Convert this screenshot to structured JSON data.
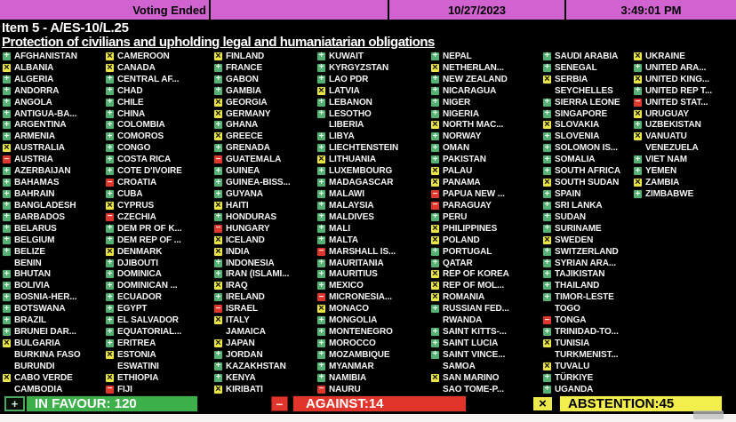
{
  "header": {
    "status": "Voting Ended",
    "date": "10/27/2023",
    "time": "3:49:01 PM"
  },
  "item": {
    "title": "Item 5 - A/ES-10/L.25",
    "subtitle": "Protection of civilians and upholding legal and humaniatarian obligations"
  },
  "vote_icons": {
    "Y": {
      "symbol": "+",
      "name": "favour-plus-icon",
      "color": "#55b173"
    },
    "A": {
      "symbol": "×",
      "name": "abstain-x-icon",
      "color": "#e9e545"
    },
    "N": {
      "symbol": "−",
      "name": "against-minus-icon",
      "color": "#df372e"
    }
  },
  "summary": {
    "in_favour_text": "IN FAVOUR: 120",
    "in_favour_count": 120,
    "against_text": "AGAINST:14",
    "against_count": 14,
    "abstention_text": "ABSTENTION:45",
    "abstention_count": 45,
    "in_favour_color": "#3db04b",
    "against_color": "#e1342a",
    "abstention_color": "#f2ee4b"
  },
  "colors": {
    "topbar": "#d163d1",
    "background": "#000000",
    "country_text": "#f4f4f4"
  },
  "columns": [
    [
      {
        "n": "AFGHANISTAN",
        "v": "Y"
      },
      {
        "n": "ALBANIA",
        "v": "A"
      },
      {
        "n": "ALGERIA",
        "v": "Y"
      },
      {
        "n": "ANDORRA",
        "v": "Y"
      },
      {
        "n": "ANGOLA",
        "v": "Y"
      },
      {
        "n": "ANTIGUA-BA...",
        "v": "Y"
      },
      {
        "n": "ARGENTINA",
        "v": "Y"
      },
      {
        "n": "ARMENIA",
        "v": "Y"
      },
      {
        "n": "AUSTRALIA",
        "v": "A"
      },
      {
        "n": "AUSTRIA",
        "v": "N"
      },
      {
        "n": "AZERBAIJAN",
        "v": "Y"
      },
      {
        "n": "BAHAMAS",
        "v": "Y"
      },
      {
        "n": "BAHRAIN",
        "v": "Y"
      },
      {
        "n": "BANGLADESH",
        "v": "Y"
      },
      {
        "n": "BARBADOS",
        "v": "Y"
      },
      {
        "n": "BELARUS",
        "v": "Y"
      },
      {
        "n": "BELGIUM",
        "v": "Y"
      },
      {
        "n": "BELIZE",
        "v": "Y"
      },
      {
        "n": "BENIN",
        "v": ""
      },
      {
        "n": "BHUTAN",
        "v": "Y"
      },
      {
        "n": "BOLIVIA",
        "v": "Y"
      },
      {
        "n": "BOSNIA-HER...",
        "v": "Y"
      },
      {
        "n": "BOTSWANA",
        "v": "Y"
      },
      {
        "n": "BRAZIL",
        "v": "Y"
      },
      {
        "n": "BRUNEI DAR...",
        "v": "Y"
      },
      {
        "n": "BULGARIA",
        "v": "A"
      },
      {
        "n": "BURKINA FASO",
        "v": ""
      },
      {
        "n": "BURUNDI",
        "v": ""
      },
      {
        "n": "CABO VERDE",
        "v": "A"
      },
      {
        "n": "CAMBODIA",
        "v": ""
      }
    ],
    [
      {
        "n": "CAMEROON",
        "v": "A"
      },
      {
        "n": "CANADA",
        "v": "A"
      },
      {
        "n": "CENTRAL AF...",
        "v": "Y"
      },
      {
        "n": "CHAD",
        "v": "Y"
      },
      {
        "n": "CHILE",
        "v": "Y"
      },
      {
        "n": "CHINA",
        "v": "Y"
      },
      {
        "n": "COLOMBIA",
        "v": "Y"
      },
      {
        "n": "COMOROS",
        "v": "Y"
      },
      {
        "n": "CONGO",
        "v": "Y"
      },
      {
        "n": "COSTA RICA",
        "v": "Y"
      },
      {
        "n": "COTE D'IVOIRE",
        "v": "Y"
      },
      {
        "n": "CROATIA",
        "v": "N"
      },
      {
        "n": "CUBA",
        "v": "Y"
      },
      {
        "n": "CYPRUS",
        "v": "A"
      },
      {
        "n": "CZECHIA",
        "v": "N"
      },
      {
        "n": "DEM PR OF K...",
        "v": "Y"
      },
      {
        "n": "DEM REP OF ...",
        "v": "Y"
      },
      {
        "n": "DENMARK",
        "v": "A"
      },
      {
        "n": "DJIBOUTI",
        "v": "Y"
      },
      {
        "n": "DOMINICA",
        "v": "Y"
      },
      {
        "n": "DOMINICAN ...",
        "v": "Y"
      },
      {
        "n": "ECUADOR",
        "v": "Y"
      },
      {
        "n": "EGYPT",
        "v": "Y"
      },
      {
        "n": "EL SALVADOR",
        "v": "Y"
      },
      {
        "n": "EQUATORIAL...",
        "v": "Y"
      },
      {
        "n": "ERITREA",
        "v": "Y"
      },
      {
        "n": "ESTONIA",
        "v": "A"
      },
      {
        "n": "ESWATINI",
        "v": ""
      },
      {
        "n": "ETHIOPIA",
        "v": "A"
      },
      {
        "n": "FIJI",
        "v": "N"
      }
    ],
    [
      {
        "n": "FINLAND",
        "v": "A"
      },
      {
        "n": "FRANCE",
        "v": "Y"
      },
      {
        "n": "GABON",
        "v": "Y"
      },
      {
        "n": "GAMBIA",
        "v": "Y"
      },
      {
        "n": "GEORGIA",
        "v": "A"
      },
      {
        "n": "GERMANY",
        "v": "A"
      },
      {
        "n": "GHANA",
        "v": "Y"
      },
      {
        "n": "GREECE",
        "v": "A"
      },
      {
        "n": "GRENADA",
        "v": "Y"
      },
      {
        "n": "GUATEMALA",
        "v": "N"
      },
      {
        "n": "GUINEA",
        "v": "Y"
      },
      {
        "n": "GUINEA-BISS...",
        "v": "Y"
      },
      {
        "n": "GUYANA",
        "v": "Y"
      },
      {
        "n": "HAITI",
        "v": "A"
      },
      {
        "n": "HONDURAS",
        "v": "Y"
      },
      {
        "n": "HUNGARY",
        "v": "N"
      },
      {
        "n": "ICELAND",
        "v": "A"
      },
      {
        "n": "INDIA",
        "v": "A"
      },
      {
        "n": "INDONESIA",
        "v": "Y"
      },
      {
        "n": "IRAN (ISLAMI...",
        "v": "Y"
      },
      {
        "n": "IRAQ",
        "v": "A"
      },
      {
        "n": "IRELAND",
        "v": "Y"
      },
      {
        "n": "ISRAEL",
        "v": "N"
      },
      {
        "n": "ITALY",
        "v": "A"
      },
      {
        "n": "JAMAICA",
        "v": ""
      },
      {
        "n": "JAPAN",
        "v": "A"
      },
      {
        "n": "JORDAN",
        "v": "Y"
      },
      {
        "n": "KAZAKHSTAN",
        "v": "Y"
      },
      {
        "n": "KENYA",
        "v": "Y"
      },
      {
        "n": "KIRIBATI",
        "v": "A"
      }
    ],
    [
      {
        "n": "KUWAIT",
        "v": "Y"
      },
      {
        "n": "KYRGYZSTAN",
        "v": "Y"
      },
      {
        "n": "LAO PDR",
        "v": "Y"
      },
      {
        "n": "LATVIA",
        "v": "A"
      },
      {
        "n": "LEBANON",
        "v": "Y"
      },
      {
        "n": "LESOTHO",
        "v": "Y"
      },
      {
        "n": "LIBERIA",
        "v": ""
      },
      {
        "n": "LIBYA",
        "v": "Y"
      },
      {
        "n": "LIECHTENSTEIN",
        "v": "Y"
      },
      {
        "n": "LITHUANIA",
        "v": "A"
      },
      {
        "n": "LUXEMBOURG",
        "v": "Y"
      },
      {
        "n": "MADAGASCAR",
        "v": "Y"
      },
      {
        "n": "MALAWI",
        "v": "Y"
      },
      {
        "n": "MALAYSIA",
        "v": "Y"
      },
      {
        "n": "MALDIVES",
        "v": "Y"
      },
      {
        "n": "MALI",
        "v": "Y"
      },
      {
        "n": "MALTA",
        "v": "Y"
      },
      {
        "n": "MARSHALL IS...",
        "v": "N"
      },
      {
        "n": "MAURITANIA",
        "v": "Y"
      },
      {
        "n": "MAURITIUS",
        "v": "Y"
      },
      {
        "n": "MEXICO",
        "v": "Y"
      },
      {
        "n": "MICRONESIA...",
        "v": "N"
      },
      {
        "n": "MONACO",
        "v": "A"
      },
      {
        "n": "MONGOLIA",
        "v": "Y"
      },
      {
        "n": "MONTENEGRO",
        "v": "Y"
      },
      {
        "n": "MOROCCO",
        "v": "Y"
      },
      {
        "n": "MOZAMBIQUE",
        "v": "Y"
      },
      {
        "n": "MYANMAR",
        "v": "Y"
      },
      {
        "n": "NAMIBIA",
        "v": "Y"
      },
      {
        "n": "NAURU",
        "v": "N"
      }
    ],
    [
      {
        "n": "NEPAL",
        "v": "Y"
      },
      {
        "n": "NETHERLAN...",
        "v": "A"
      },
      {
        "n": "NEW ZEALAND",
        "v": "Y"
      },
      {
        "n": "NICARAGUA",
        "v": "Y"
      },
      {
        "n": "NIGER",
        "v": "Y"
      },
      {
        "n": "NIGERIA",
        "v": "Y"
      },
      {
        "n": "NORTH MAC...",
        "v": "A"
      },
      {
        "n": "NORWAY",
        "v": "Y"
      },
      {
        "n": "OMAN",
        "v": "Y"
      },
      {
        "n": "PAKISTAN",
        "v": "Y"
      },
      {
        "n": "PALAU",
        "v": "A"
      },
      {
        "n": "PANAMA",
        "v": "A"
      },
      {
        "n": "PAPUA NEW ...",
        "v": "N"
      },
      {
        "n": "PARAGUAY",
        "v": "N"
      },
      {
        "n": "PERU",
        "v": "Y"
      },
      {
        "n": "PHILIPPINES",
        "v": "A"
      },
      {
        "n": "POLAND",
        "v": "A"
      },
      {
        "n": "PORTUGAL",
        "v": "Y"
      },
      {
        "n": "QATAR",
        "v": "Y"
      },
      {
        "n": "REP OF KOREA",
        "v": "A"
      },
      {
        "n": "REP OF MOL...",
        "v": "A"
      },
      {
        "n": "ROMANIA",
        "v": "A"
      },
      {
        "n": "RUSSIAN FED...",
        "v": "Y"
      },
      {
        "n": "RWANDA",
        "v": ""
      },
      {
        "n": "SAINT KITTS-...",
        "v": "Y"
      },
      {
        "n": "SAINT LUCIA",
        "v": "Y"
      },
      {
        "n": "SAINT VINCE...",
        "v": "Y"
      },
      {
        "n": "SAMOA",
        "v": ""
      },
      {
        "n": "SAN MARINO",
        "v": "A"
      },
      {
        "n": "SAO TOME-P...",
        "v": ""
      }
    ],
    [
      {
        "n": "SAUDI ARABIA",
        "v": "Y"
      },
      {
        "n": "SENEGAL",
        "v": "Y"
      },
      {
        "n": "SERBIA",
        "v": "A"
      },
      {
        "n": "SEYCHELLES",
        "v": ""
      },
      {
        "n": "SIERRA LEONE",
        "v": "Y"
      },
      {
        "n": "SINGAPORE",
        "v": "Y"
      },
      {
        "n": "SLOVAKIA",
        "v": "A"
      },
      {
        "n": "SLOVENIA",
        "v": "Y"
      },
      {
        "n": "SOLOMON IS...",
        "v": "Y"
      },
      {
        "n": "SOMALIA",
        "v": "Y"
      },
      {
        "n": "SOUTH AFRICA",
        "v": "Y"
      },
      {
        "n": "SOUTH SUDAN",
        "v": "A"
      },
      {
        "n": "SPAIN",
        "v": "Y"
      },
      {
        "n": "SRI LANKA",
        "v": "Y"
      },
      {
        "n": "SUDAN",
        "v": "Y"
      },
      {
        "n": "SURINAME",
        "v": "Y"
      },
      {
        "n": "SWEDEN",
        "v": "A"
      },
      {
        "n": "SWITZERLAND",
        "v": "Y"
      },
      {
        "n": "SYRIAN ARA...",
        "v": "Y"
      },
      {
        "n": "TAJIKISTAN",
        "v": "Y"
      },
      {
        "n": "THAILAND",
        "v": "Y"
      },
      {
        "n": "TIMOR-LESTE",
        "v": "Y"
      },
      {
        "n": "TOGO",
        "v": ""
      },
      {
        "n": "TONGA",
        "v": "N"
      },
      {
        "n": "TRINIDAD-TO...",
        "v": "Y"
      },
      {
        "n": "TUNISIA",
        "v": "A"
      },
      {
        "n": "TURKMENIST...",
        "v": ""
      },
      {
        "n": "TUVALU",
        "v": "A"
      },
      {
        "n": "TÜRKIYE",
        "v": "Y"
      },
      {
        "n": "UGANDA",
        "v": "Y"
      }
    ],
    [
      {
        "n": "UKRAINE",
        "v": "A"
      },
      {
        "n": "UNITED ARA...",
        "v": "Y"
      },
      {
        "n": "UNITED KING...",
        "v": "A"
      },
      {
        "n": "UNITED REP T...",
        "v": "Y"
      },
      {
        "n": "UNITED STAT...",
        "v": "N"
      },
      {
        "n": "URUGUAY",
        "v": "A"
      },
      {
        "n": "UZBEKISTAN",
        "v": "Y"
      },
      {
        "n": "VANUATU",
        "v": "A"
      },
      {
        "n": "VENEZUELA",
        "v": ""
      },
      {
        "n": "VIET NAM",
        "v": "Y"
      },
      {
        "n": "YEMEN",
        "v": "Y"
      },
      {
        "n": "ZAMBIA",
        "v": "A"
      },
      {
        "n": "ZIMBABWE",
        "v": "Y"
      }
    ]
  ]
}
